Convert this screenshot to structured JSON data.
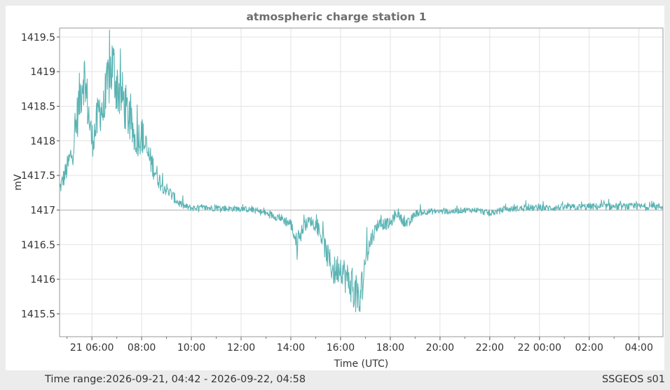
{
  "chart_data": {
    "type": "line",
    "title": "atmospheric charge station 1",
    "xlabel": "Time (UTC)",
    "ylabel": "mV",
    "ylim": [
      1415.17,
      1419.63
    ],
    "xlim": [
      "2026-09-21 04:42",
      "2026-09-22 04:58"
    ],
    "grid": true,
    "line_color": "#5bb3b3",
    "reference_line": 1417,
    "x_ticks": [
      "21 06:00",
      "08:00",
      "10:00",
      "12:00",
      "14:00",
      "16:00",
      "18:00",
      "20:00",
      "22:00",
      "22 00:00",
      "02:00",
      "04:00"
    ],
    "x_tick_times": [
      "2026-09-21 06:00",
      "2026-09-21 08:00",
      "2026-09-21 10:00",
      "2026-09-21 12:00",
      "2026-09-21 14:00",
      "2026-09-21 16:00",
      "2026-09-21 18:00",
      "2026-09-21 20:00",
      "2026-09-21 22:00",
      "2026-09-22 00:00",
      "2026-09-22 02:00",
      "2026-09-22 04:00"
    ],
    "y_ticks": [
      "1419.5",
      "1419",
      "1418.5",
      "1418",
      "1417.5",
      "1417",
      "1416.5",
      "1416",
      "1415.5"
    ],
    "y_tick_values": [
      1419.5,
      1419,
      1418.5,
      1418,
      1417.5,
      1417,
      1416.5,
      1416,
      1415.5
    ],
    "series": [
      {
        "x": [
          "2026-09-21 04:42",
          "2026-09-21 05:00",
          "2026-09-21 05:15",
          "2026-09-21 05:30",
          "2026-09-21 05:40",
          "2026-09-21 05:50",
          "2026-09-21 06:00",
          "2026-09-21 06:10",
          "2026-09-21 06:20",
          "2026-09-21 06:30",
          "2026-09-21 06:40",
          "2026-09-21 06:50",
          "2026-09-21 07:00",
          "2026-09-21 07:15",
          "2026-09-21 07:30",
          "2026-09-21 07:45",
          "2026-09-21 08:00",
          "2026-09-21 08:15",
          "2026-09-21 08:30",
          "2026-09-21 08:45",
          "2026-09-21 09:00",
          "2026-09-21 09:15",
          "2026-09-21 09:30",
          "2026-09-21 09:45",
          "2026-09-21 10:00",
          "2026-09-21 10:30",
          "2026-09-21 11:00",
          "2026-09-21 11:30",
          "2026-09-21 12:00",
          "2026-09-21 12:30",
          "2026-09-21 13:00",
          "2026-09-21 13:30",
          "2026-09-21 14:00",
          "2026-09-21 14:15",
          "2026-09-21 14:30",
          "2026-09-21 14:45",
          "2026-09-21 15:00",
          "2026-09-21 15:15",
          "2026-09-21 15:30",
          "2026-09-21 15:45",
          "2026-09-21 16:00",
          "2026-09-21 16:15",
          "2026-09-21 16:30",
          "2026-09-21 16:45",
          "2026-09-21 17:00",
          "2026-09-21 17:15",
          "2026-09-21 17:30",
          "2026-09-21 17:45",
          "2026-09-21 18:00",
          "2026-09-21 18:15",
          "2026-09-21 18:30",
          "2026-09-21 18:45",
          "2026-09-21 19:00",
          "2026-09-21 19:30",
          "2026-09-21 20:00",
          "2026-09-21 20:30",
          "2026-09-21 21:00",
          "2026-09-21 21:30",
          "2026-09-21 22:00",
          "2026-09-21 22:30",
          "2026-09-21 23:00",
          "2026-09-21 23:30",
          "2026-09-22 00:00",
          "2026-09-22 00:30",
          "2026-09-22 01:00",
          "2026-09-22 01:30",
          "2026-09-22 02:00",
          "2026-09-22 02:30",
          "2026-09-22 03:00",
          "2026-09-22 03:30",
          "2026-09-22 04:00",
          "2026-09-22 04:30",
          "2026-09-22 04:58"
        ],
        "y": [
          1417.3,
          1417.6,
          1417.9,
          1418.6,
          1419.0,
          1418.5,
          1418.0,
          1418.2,
          1418.5,
          1418.4,
          1418.9,
          1419.1,
          1418.8,
          1418.6,
          1418.3,
          1418.0,
          1418.1,
          1417.8,
          1417.6,
          1417.4,
          1417.3,
          1417.2,
          1417.1,
          1417.05,
          1417.03,
          1417.03,
          1417.03,
          1417.02,
          1417.02,
          1417.0,
          1416.95,
          1416.9,
          1416.8,
          1416.5,
          1416.75,
          1416.85,
          1416.8,
          1416.6,
          1416.3,
          1416.1,
          1416.2,
          1416.0,
          1415.9,
          1415.6,
          1416.3,
          1416.6,
          1416.8,
          1416.8,
          1416.8,
          1416.95,
          1416.85,
          1416.8,
          1416.95,
          1416.98,
          1416.98,
          1416.98,
          1417.0,
          1417.0,
          1416.95,
          1417.0,
          1417.02,
          1417.03,
          1417.03,
          1417.03,
          1417.04,
          1417.04,
          1417.05,
          1417.05,
          1417.05,
          1417.05,
          1417.05,
          1417.05,
          1417.05
        ]
      }
    ]
  },
  "footer": {
    "time_range": "Time range:2026-09-21, 04:42 - 2026-09-22, 04:58",
    "source": "SSGEOS s01"
  }
}
